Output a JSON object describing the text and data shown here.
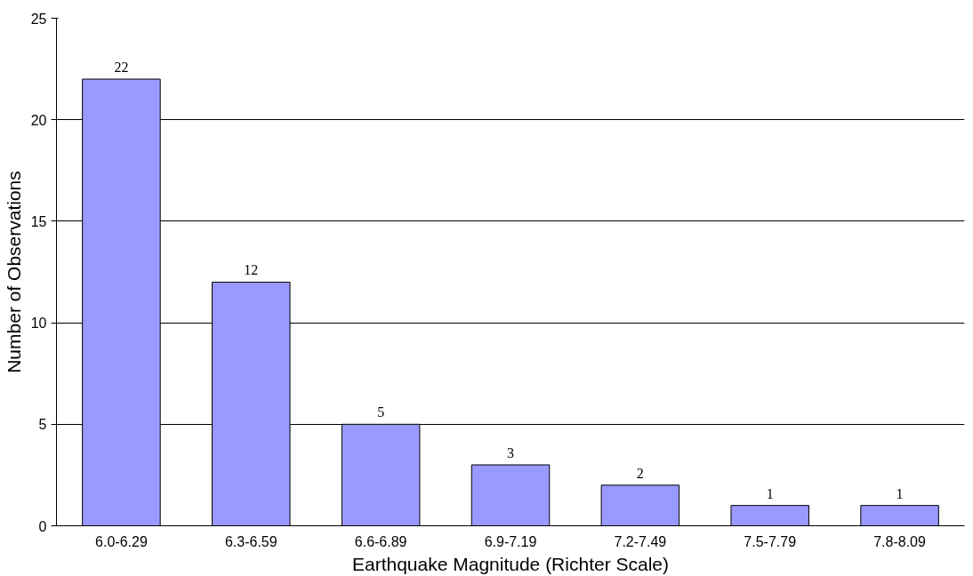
{
  "chart_data": {
    "type": "bar",
    "xlabel": "Earthquake Magnitude (Richter Scale)",
    "ylabel": "Number of Observations",
    "categories": [
      "6.0-6.29",
      "6.3-6.59",
      "6.6-6.89",
      "6.9-7.19",
      "7.2-7.49",
      "7.5-7.79",
      "7.8-8.09"
    ],
    "values": [
      22,
      12,
      5,
      3,
      2,
      1,
      1
    ],
    "color": "#9999ff",
    "ylim": [
      0,
      25
    ],
    "yticks": [
      0,
      5,
      10,
      15,
      20,
      25
    ],
    "grid": "y",
    "data_labels": true
  }
}
